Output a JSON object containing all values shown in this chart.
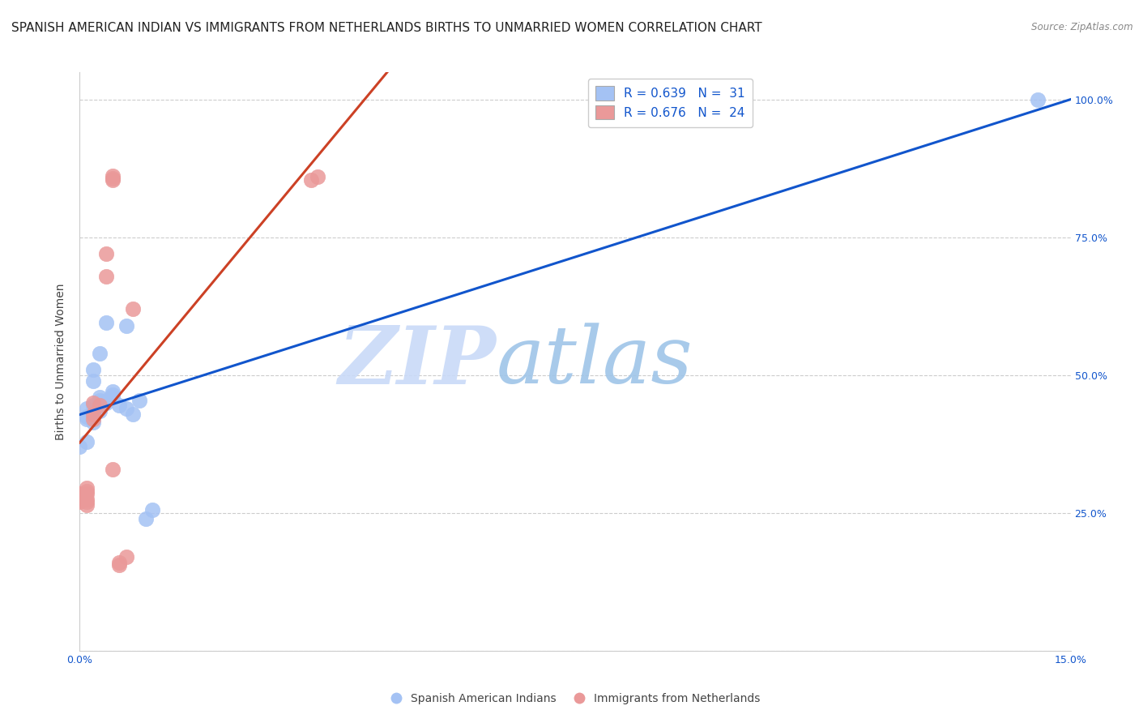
{
  "title": "SPANISH AMERICAN INDIAN VS IMMIGRANTS FROM NETHERLANDS BIRTHS TO UNMARRIED WOMEN CORRELATION CHART",
  "source": "Source: ZipAtlas.com",
  "ylabel": "Births to Unmarried Women",
  "watermark_zip": "ZIP",
  "watermark_atlas": "atlas",
  "xmin": 0.0,
  "xmax": 0.15,
  "ymin": 0.0,
  "ymax": 1.05,
  "legend1_label": "R = 0.639   N =  31",
  "legend2_label": "R = 0.676   N =  24",
  "legend_label1": "Spanish American Indians",
  "legend_label2": "Immigrants from Netherlands",
  "blue_color": "#a4c2f4",
  "pink_color": "#ea9999",
  "blue_line_color": "#1155cc",
  "pink_line_color": "#cc4125",
  "legend_text_color": "#1155cc",
  "blue_points": [
    [
      0.0,
      0.37
    ],
    [
      0.001,
      0.38
    ],
    [
      0.001,
      0.42
    ],
    [
      0.001,
      0.425
    ],
    [
      0.001,
      0.44
    ],
    [
      0.002,
      0.415
    ],
    [
      0.002,
      0.43
    ],
    [
      0.002,
      0.435
    ],
    [
      0.002,
      0.445
    ],
    [
      0.002,
      0.49
    ],
    [
      0.002,
      0.51
    ],
    [
      0.003,
      0.435
    ],
    [
      0.003,
      0.445
    ],
    [
      0.003,
      0.45
    ],
    [
      0.003,
      0.455
    ],
    [
      0.003,
      0.46
    ],
    [
      0.003,
      0.54
    ],
    [
      0.004,
      0.45
    ],
    [
      0.004,
      0.455
    ],
    [
      0.004,
      0.595
    ],
    [
      0.005,
      0.46
    ],
    [
      0.005,
      0.465
    ],
    [
      0.005,
      0.47
    ],
    [
      0.006,
      0.445
    ],
    [
      0.007,
      0.44
    ],
    [
      0.007,
      0.59
    ],
    [
      0.008,
      0.43
    ],
    [
      0.009,
      0.455
    ],
    [
      0.01,
      0.24
    ],
    [
      0.011,
      0.255
    ],
    [
      0.145,
      1.0
    ]
  ],
  "pink_points": [
    [
      0.0,
      0.27
    ],
    [
      0.0,
      0.285
    ],
    [
      0.001,
      0.265
    ],
    [
      0.001,
      0.27
    ],
    [
      0.001,
      0.275
    ],
    [
      0.001,
      0.285
    ],
    [
      0.001,
      0.29
    ],
    [
      0.001,
      0.295
    ],
    [
      0.002,
      0.42
    ],
    [
      0.002,
      0.43
    ],
    [
      0.002,
      0.45
    ],
    [
      0.003,
      0.445
    ],
    [
      0.004,
      0.68
    ],
    [
      0.004,
      0.72
    ],
    [
      0.005,
      0.33
    ],
    [
      0.005,
      0.855
    ],
    [
      0.005,
      0.858
    ],
    [
      0.005,
      0.862
    ],
    [
      0.006,
      0.155
    ],
    [
      0.006,
      0.16
    ],
    [
      0.007,
      0.17
    ],
    [
      0.008,
      0.62
    ],
    [
      0.035,
      0.855
    ],
    [
      0.036,
      0.86
    ]
  ],
  "background_color": "#ffffff",
  "grid_color": "#cccccc",
  "title_fontsize": 11,
  "axis_label_fontsize": 10,
  "tick_fontsize": 9
}
